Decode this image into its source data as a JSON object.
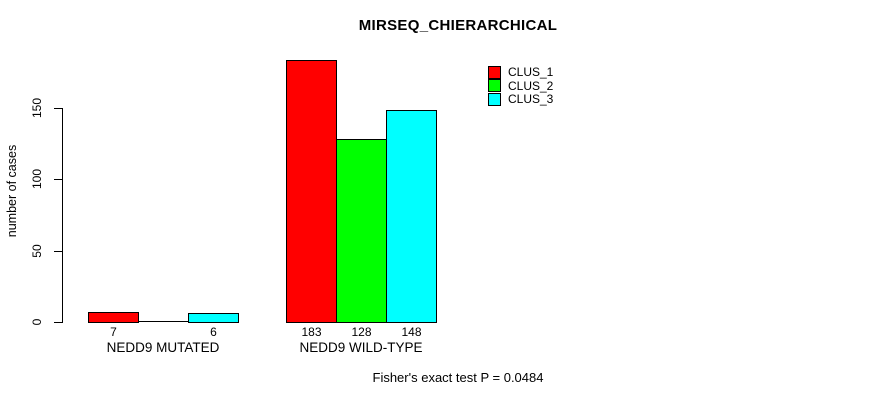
{
  "chart_data": {
    "type": "bar",
    "title": "MIRSEQ_CHIERARCHICAL",
    "ylabel": "number of cases",
    "xlabel": "",
    "categories": [
      "NEDD9 MUTATED",
      "NEDD9 WILD-TYPE"
    ],
    "series": [
      {
        "name": "CLUS_1",
        "color": "#ff0000",
        "values": [
          7,
          183
        ]
      },
      {
        "name": "CLUS_2",
        "color": "#00ff00",
        "values": [
          0,
          128
        ]
      },
      {
        "name": "CLUS_3",
        "color": "#00ffff",
        "values": [
          6,
          148
        ]
      }
    ],
    "bar_labels": [
      [
        "7",
        "",
        "6"
      ],
      [
        "183",
        "128",
        "148"
      ]
    ],
    "yticks": [
      0,
      50,
      100,
      150
    ],
    "ylim": [
      0,
      185
    ],
    "grid": false,
    "legend_position": "top-right",
    "annotation": "Fisher's exact test P = 0.0484"
  },
  "colors": {
    "background": "#ffffff",
    "axis": "#000000",
    "bar_border": "#000000"
  }
}
